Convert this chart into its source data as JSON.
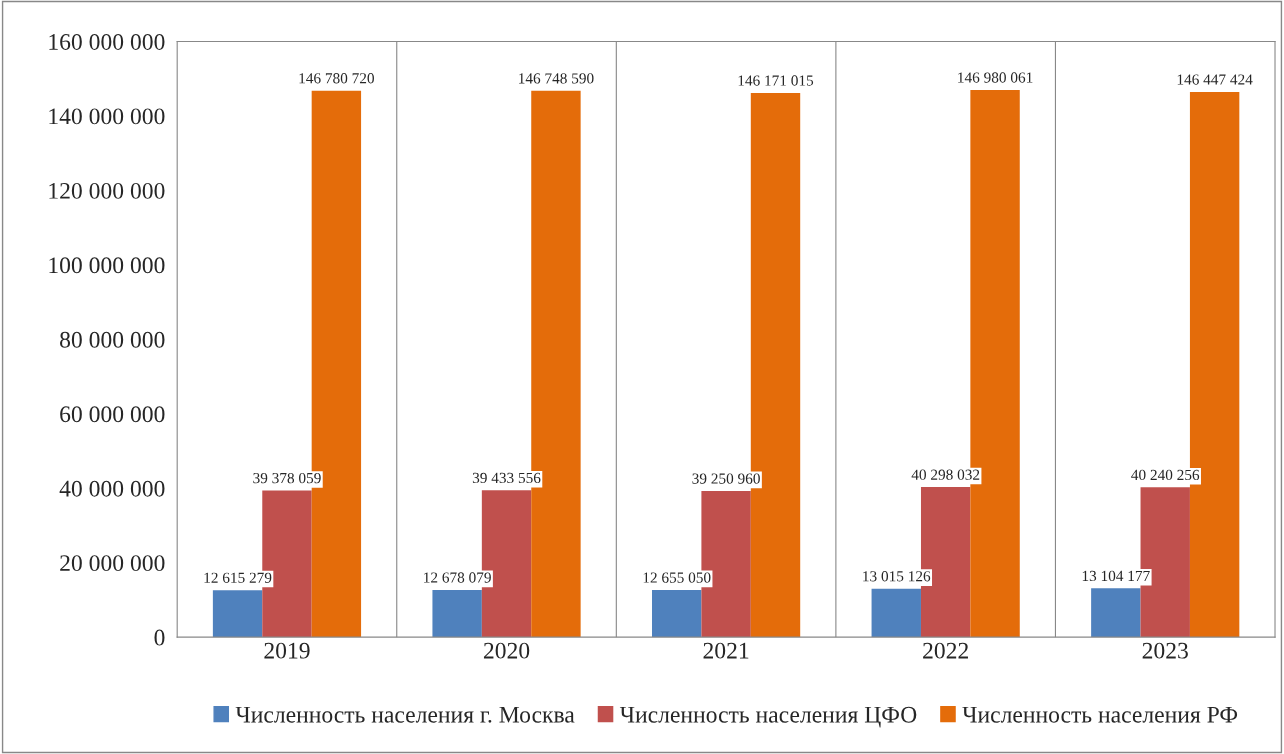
{
  "chart_data": {
    "type": "bar",
    "categories": [
      "2019",
      "2020",
      "2021",
      "2022",
      "2023"
    ],
    "series": [
      {
        "name": "Численность населения г. Москва",
        "color": "#4f81bd",
        "values": [
          12615279,
          12678079,
          12655050,
          13015126,
          13104177
        ],
        "value_labels": [
          "12 615 279",
          "12 678 079",
          "12 655 050",
          "13 015 126",
          "13 104 177"
        ]
      },
      {
        "name": "Численность населения ЦФО",
        "color": "#c0504d",
        "values": [
          39378059,
          39433556,
          39250960,
          40298032,
          40240256
        ],
        "value_labels": [
          "39 378 059",
          "39 433 556",
          "39 250 960",
          "40 298 032",
          "40 240 256"
        ]
      },
      {
        "name": "Численность населения РФ",
        "color": "#e46c0a",
        "values": [
          146780720,
          146748590,
          146171015,
          146980061,
          146447424
        ],
        "value_labels": [
          "146 780 720",
          "146 748 590",
          "146 171 015",
          "146 980 061",
          "146 447 424"
        ]
      }
    ],
    "ylim": [
      0,
      160000000
    ],
    "yticks": [
      {
        "value": 0,
        "label": "0"
      },
      {
        "value": 20000000,
        "label": "20 000 000"
      },
      {
        "value": 40000000,
        "label": "40 000 000"
      },
      {
        "value": 60000000,
        "label": "60 000 000"
      },
      {
        "value": 80000000,
        "label": "80 000 000"
      },
      {
        "value": 100000000,
        "label": "100 000 000"
      },
      {
        "value": 120000000,
        "label": "120 000 000"
      },
      {
        "value": 140000000,
        "label": "140 000 000"
      },
      {
        "value": 160000000,
        "label": "160 000 000"
      }
    ],
    "grid": "x",
    "legend": "bottom"
  }
}
